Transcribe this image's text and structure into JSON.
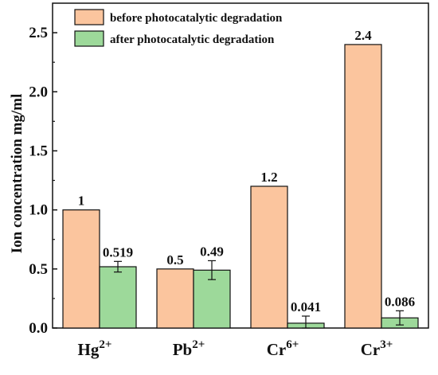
{
  "chart_data": {
    "type": "bar",
    "ylabel": "Ion concentration mg/ml",
    "ylim": [
      0,
      2.75
    ],
    "yticks": [
      "0.0",
      "0.5",
      "1.0",
      "1.5",
      "2.0",
      "2.5"
    ],
    "categories": [
      {
        "base": "Hg",
        "sup": "2+"
      },
      {
        "base": "Pb",
        "sup": "2+"
      },
      {
        "base": "Cr",
        "sup": "6+"
      },
      {
        "base": "Cr",
        "sup": "3+"
      }
    ],
    "legend_position": "top-left",
    "series": [
      {
        "name": "before photocatalytic degradation",
        "color": "#FBC59E",
        "values": [
          1.0,
          0.5,
          1.2,
          2.4
        ],
        "labels": [
          "1",
          "0.5",
          "1.2",
          "2.4"
        ],
        "errors": [
          0,
          0,
          0,
          0
        ]
      },
      {
        "name": "after photocatalytic degradation",
        "color": "#9DD99A",
        "values": [
          0.519,
          0.49,
          0.041,
          0.086
        ],
        "labels": [
          "0.519",
          "0.49",
          "0.041",
          "0.086"
        ],
        "errors": [
          0.045,
          0.08,
          0.06,
          0.06
        ]
      }
    ]
  }
}
